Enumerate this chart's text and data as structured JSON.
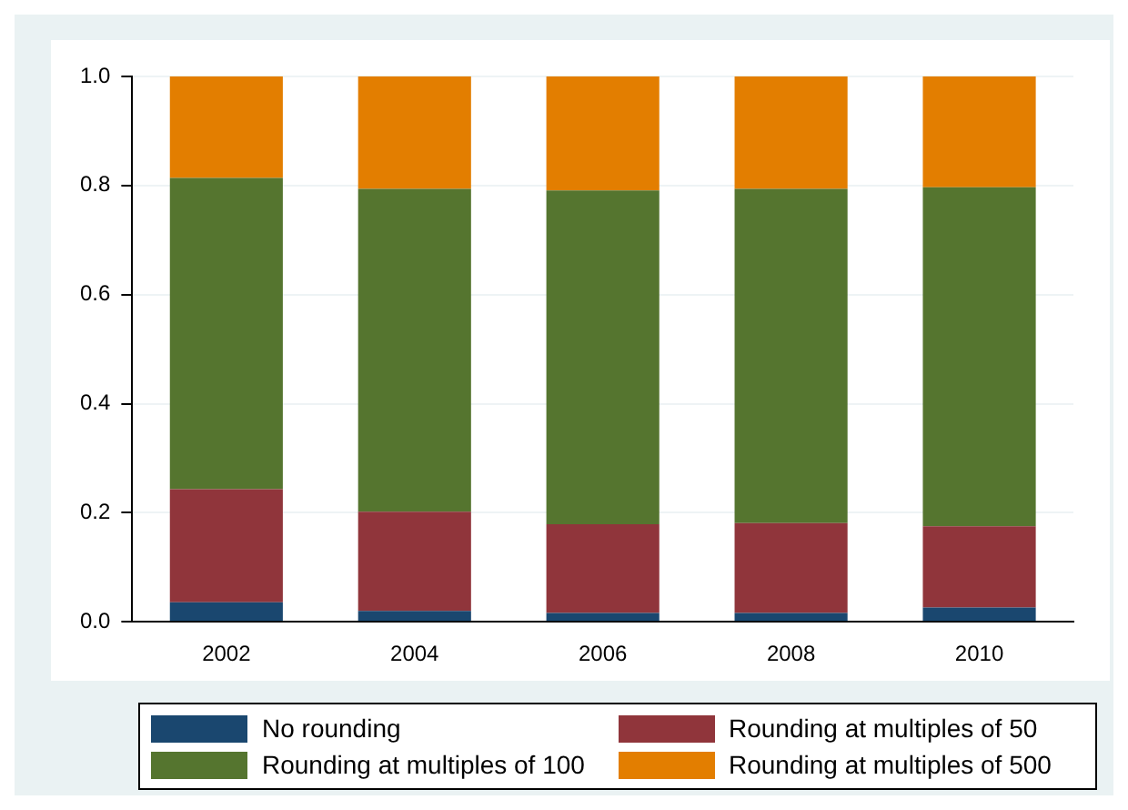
{
  "chart_data": {
    "type": "bar",
    "stacked": true,
    "categories": [
      "2002",
      "2004",
      "2006",
      "2008",
      "2010"
    ],
    "series": [
      {
        "name": "No rounding",
        "color": "#1a476f",
        "values": [
          0.036,
          0.02,
          0.016,
          0.016,
          0.026
        ]
      },
      {
        "name": "Rounding at multiples of 50",
        "color": "#90353b",
        "values": [
          0.207,
          0.182,
          0.163,
          0.165,
          0.149
        ]
      },
      {
        "name": "Rounding at multiples of 100",
        "color": "#55752f",
        "values": [
          0.571,
          0.592,
          0.612,
          0.613,
          0.622
        ]
      },
      {
        "name": "Rounding at multiples of 500",
        "color": "#e37e00",
        "values": [
          0.187,
          0.206,
          0.209,
          0.206,
          0.203
        ]
      }
    ],
    "ylim": [
      0,
      1.0
    ],
    "yticks": [
      {
        "value": 0,
        "label": "0.0"
      },
      {
        "value": 0.2,
        "label": "0.2"
      },
      {
        "value": 0.4,
        "label": "0.4"
      },
      {
        "value": 0.6,
        "label": "0.6"
      },
      {
        "value": 0.8,
        "label": "0.8"
      },
      {
        "value": 1.0,
        "label": "1.0"
      }
    ],
    "grid": "y",
    "legend": "bottom"
  }
}
